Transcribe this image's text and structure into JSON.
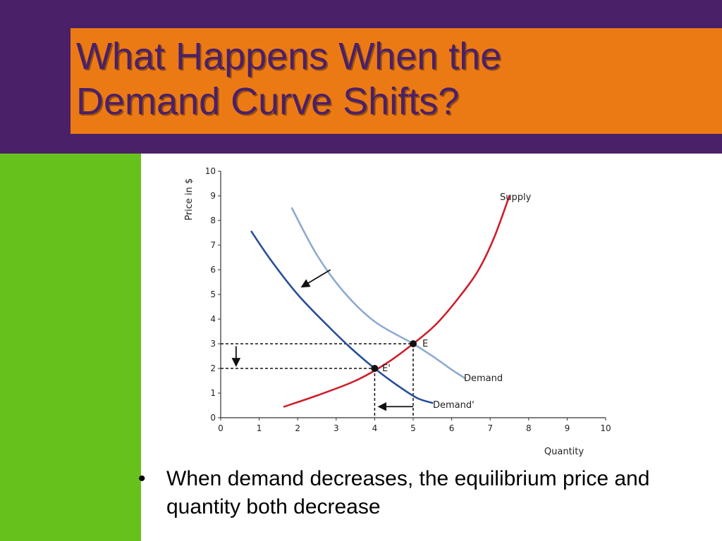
{
  "slide": {
    "title_line1": "What Happens When the",
    "title_line2": "Demand Curve Shifts?",
    "bullet": "When demand decreases, the equilibrium price and quantity both decrease",
    "bullet_symbol": "•"
  },
  "colors": {
    "header": "#4a2068",
    "title_box": "#ec7a14",
    "title_text": "#4a2068",
    "side_bar": "#66c11c",
    "supply": "#cc1f2b",
    "demand": "#8eaad2",
    "demand_new": "#284e98"
  },
  "chart_data": {
    "type": "line",
    "xlabel": "Quantity",
    "ylabel": "Price in $",
    "xlim": [
      0,
      10
    ],
    "ylim": [
      0,
      10
    ],
    "xticks": [
      0,
      1,
      2,
      3,
      4,
      5,
      6,
      7,
      8,
      9,
      10
    ],
    "yticks": [
      0,
      1,
      2,
      3,
      4,
      5,
      6,
      7,
      8,
      9,
      10
    ],
    "grid": false,
    "series": [
      {
        "name": "Supply",
        "color": "#cc1f2b",
        "points": [
          [
            1.65,
            0.45
          ],
          [
            2.5,
            0.9
          ],
          [
            3.5,
            1.5
          ],
          [
            4.3,
            2.2
          ],
          [
            5,
            3
          ],
          [
            5.6,
            3.8
          ],
          [
            6.2,
            4.9
          ],
          [
            6.7,
            6.0
          ],
          [
            7.1,
            7.3
          ],
          [
            7.5,
            9.0
          ]
        ]
      },
      {
        "name": "Demand",
        "color": "#8eaad2",
        "points": [
          [
            1.85,
            8.5
          ],
          [
            2.5,
            6.6
          ],
          [
            3.2,
            5.1
          ],
          [
            4,
            3.9
          ],
          [
            5,
            3
          ],
          [
            5.5,
            2.5
          ],
          [
            6,
            1.95
          ],
          [
            6.35,
            1.6
          ]
        ]
      },
      {
        "name": "Demand'",
        "color": "#284e98",
        "points": [
          [
            0.8,
            7.55
          ],
          [
            1.3,
            6.4
          ],
          [
            2,
            5.0
          ],
          [
            2.8,
            3.7
          ],
          [
            3.4,
            2.8
          ],
          [
            4,
            2
          ],
          [
            4.6,
            1.3
          ],
          [
            5.1,
            0.8
          ],
          [
            5.5,
            0.6
          ]
        ]
      }
    ],
    "points": [
      {
        "label": "E",
        "x": 5,
        "y": 3
      },
      {
        "label": "E'",
        "x": 4,
        "y": 2
      }
    ],
    "arrows": [
      {
        "from": [
          2.85,
          6.0
        ],
        "to": [
          2.1,
          5.3
        ]
      },
      {
        "from": [
          0.4,
          2.9
        ],
        "to": [
          0.4,
          2.1
        ]
      },
      {
        "from": [
          5.0,
          0.45
        ],
        "to": [
          4.1,
          0.45
        ]
      }
    ]
  }
}
